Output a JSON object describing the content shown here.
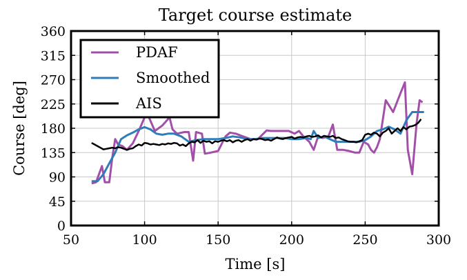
{
  "chart_data": {
    "type": "line",
    "title": "Target course estimate",
    "xlabel": "Time [s]",
    "ylabel": "Course [deg]",
    "xlim": [
      50,
      300
    ],
    "ylim": [
      0,
      360
    ],
    "xticks": [
      50,
      100,
      150,
      200,
      250,
      300
    ],
    "yticks": [
      0,
      45,
      90,
      135,
      180,
      225,
      270,
      315,
      360
    ],
    "grid": true,
    "legend_position": "top-left",
    "series": [
      {
        "name": "PDAF",
        "color": "#a24fa9",
        "x": [
          64,
          67,
          69,
          71,
          73,
          76,
          78,
          80,
          82,
          85,
          88,
          92,
          96,
          100,
          101,
          103,
          107,
          112,
          117,
          119,
          122,
          127,
          130,
          133,
          135,
          139,
          141,
          145,
          150,
          155,
          158,
          162,
          166,
          172,
          177,
          183,
          186,
          190,
          194,
          198,
          202,
          205,
          208,
          212,
          215,
          218,
          221,
          225,
          228,
          231,
          235,
          239,
          243,
          246,
          249,
          252,
          254,
          256,
          258,
          260,
          264,
          269,
          274,
          277,
          279,
          282,
          285,
          287,
          289
        ],
        "y": [
          78,
          80,
          95,
          110,
          80,
          80,
          125,
          160,
          150,
          147,
          140,
          152,
          175,
          200,
          215,
          200,
          175,
          185,
          200,
          178,
          170,
          173,
          173,
          120,
          173,
          170,
          133,
          135,
          138,
          165,
          172,
          170,
          166,
          160,
          160,
          176,
          175,
          175,
          175,
          175,
          170,
          175,
          165,
          155,
          140,
          165,
          162,
          165,
          187,
          140,
          140,
          138,
          135,
          135,
          155,
          150,
          140,
          135,
          145,
          160,
          232,
          210,
          245,
          265,
          140,
          95,
          190,
          232,
          228
        ]
      },
      {
        "name": "Smoothed",
        "color": "#2e7cb8",
        "x": [
          64,
          68,
          72,
          76,
          80,
          84,
          88,
          92,
          96,
          100,
          104,
          108,
          112,
          116,
          120,
          125,
          130,
          135,
          140,
          145,
          150,
          155,
          160,
          165,
          170,
          175,
          180,
          185,
          190,
          195,
          200,
          205,
          210,
          213,
          215,
          218,
          222,
          226,
          230,
          234,
          238,
          242,
          246,
          250,
          254,
          258,
          262,
          266,
          270,
          274,
          278,
          282,
          286,
          290
        ],
        "y": [
          82,
          82,
          95,
          115,
          135,
          160,
          167,
          172,
          178,
          182,
          178,
          170,
          168,
          170,
          170,
          165,
          155,
          158,
          160,
          160,
          160,
          162,
          165,
          163,
          160,
          160,
          162,
          162,
          162,
          162,
          160,
          160,
          162,
          160,
          175,
          162,
          165,
          160,
          155,
          155,
          155,
          155,
          155,
          158,
          165,
          175,
          178,
          183,
          178,
          170,
          195,
          210,
          210,
          210
        ]
      },
      {
        "name": "AIS",
        "color": "#000000",
        "x": [
          64,
          66,
          68,
          70,
          72,
          74,
          76,
          78,
          80,
          82,
          84,
          86,
          88,
          90,
          92,
          94,
          96,
          98,
          100,
          102,
          104,
          106,
          108,
          110,
          112,
          114,
          116,
          118,
          120,
          122,
          124,
          126,
          128,
          130,
          132,
          134,
          136,
          138,
          140,
          142,
          144,
          146,
          148,
          150,
          152,
          154,
          156,
          158,
          160,
          162,
          164,
          166,
          168,
          170,
          172,
          174,
          176,
          178,
          180,
          182,
          184,
          186,
          188,
          190,
          192,
          194,
          196,
          198,
          200,
          202,
          204,
          206,
          208,
          210,
          212,
          214,
          216,
          218,
          220,
          222,
          224,
          226,
          228,
          230,
          232,
          234,
          236,
          238,
          240,
          242,
          244,
          246,
          248,
          250,
          252,
          254,
          256,
          258,
          260,
          262,
          264,
          266,
          268,
          270,
          272,
          274,
          276,
          278,
          280,
          282,
          284,
          286,
          288
        ],
        "y": [
          153,
          150,
          147,
          144,
          141,
          142,
          143,
          144,
          143,
          145,
          144,
          142,
          140,
          142,
          143,
          147,
          150,
          148,
          153,
          152,
          150,
          151,
          150,
          149,
          151,
          150,
          152,
          151,
          153,
          152,
          148,
          150,
          147,
          152,
          155,
          154,
          158,
          153,
          157,
          155,
          156,
          152,
          156,
          155,
          157,
          158,
          156,
          158,
          154,
          157,
          158,
          155,
          158,
          160,
          157,
          160,
          159,
          161,
          160,
          158,
          159,
          157,
          160,
          163,
          161,
          160,
          162,
          163,
          164,
          161,
          163,
          164,
          163,
          165,
          166,
          164,
          165,
          167,
          163,
          166,
          165,
          164,
          166,
          162,
          163,
          160,
          158,
          156,
          155,
          155,
          154,
          156,
          158,
          168,
          170,
          168,
          172,
          170,
          165,
          172,
          175,
          180,
          170,
          175,
          180,
          175,
          182,
          178,
          183,
          184,
          186,
          190,
          197
        ]
      }
    ]
  }
}
